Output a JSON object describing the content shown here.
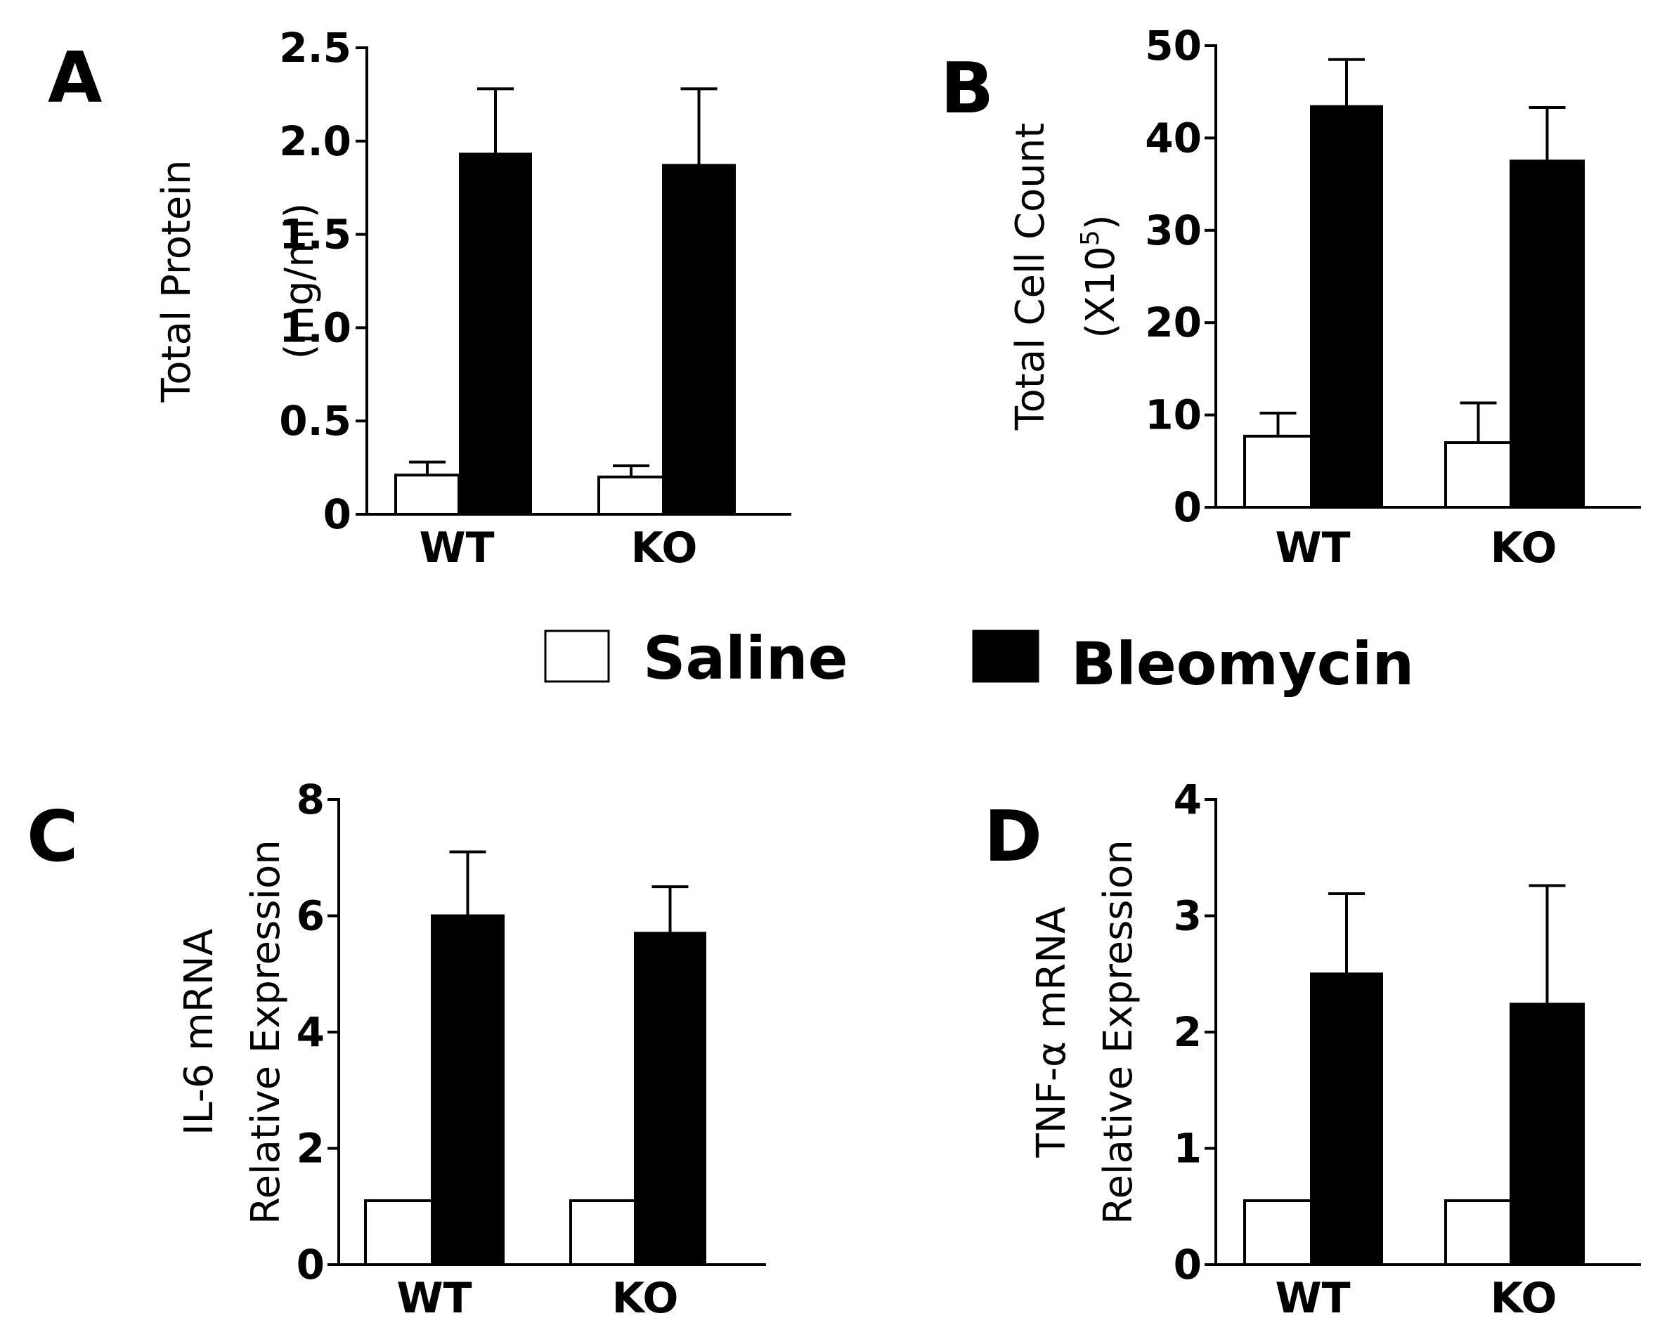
{
  "legend": {
    "items": [
      {
        "label": "Saline",
        "color": "#ffffff"
      },
      {
        "label": "Bleomycin",
        "color": "#000000"
      }
    ]
  },
  "chart_data": [
    {
      "panel": "A",
      "type": "bar",
      "categories": [
        "WT",
        "KO"
      ],
      "series": [
        {
          "name": "Saline",
          "color": "#ffffff",
          "values": [
            0.21,
            0.2
          ],
          "errors": [
            0.07,
            0.06
          ]
        },
        {
          "name": "Bleomycin",
          "color": "#000000",
          "values": [
            1.93,
            1.87
          ],
          "errors": [
            0.35,
            0.41
          ]
        }
      ],
      "ylabel_lines": [
        "Total Protein",
        "(mg/ml)"
      ],
      "ylim": [
        0,
        2.5
      ],
      "yticks": [
        "0",
        "0.5",
        "1.0",
        "1.5",
        "2.0",
        "2.5"
      ]
    },
    {
      "panel": "B",
      "type": "bar",
      "categories": [
        "WT",
        "KO"
      ],
      "series": [
        {
          "name": "Saline",
          "color": "#ffffff",
          "values": [
            7.7,
            7.0
          ],
          "errors": [
            2.5,
            4.3
          ]
        },
        {
          "name": "Bleomycin",
          "color": "#000000",
          "values": [
            43.4,
            37.5
          ],
          "errors": [
            5.1,
            5.8
          ]
        }
      ],
      "ylabel_lines": [
        "Total Cell Count",
        "(X10",
        "5",
        ")"
      ],
      "ylim": [
        0,
        50
      ],
      "yticks": [
        "0",
        "10",
        "20",
        "30",
        "40",
        "50"
      ]
    },
    {
      "panel": "C",
      "type": "bar",
      "categories": [
        "WT",
        "KO"
      ],
      "series": [
        {
          "name": "Saline",
          "color": "#ffffff",
          "values": [
            1.1,
            1.1
          ],
          "errors": [
            0,
            0
          ]
        },
        {
          "name": "Bleomycin",
          "color": "#000000",
          "values": [
            6.0,
            5.7
          ],
          "errors": [
            1.1,
            0.8
          ]
        }
      ],
      "ylabel_lines": [
        "IL-6 mRNA",
        "Relative Expression"
      ],
      "ylim": [
        0,
        8
      ],
      "yticks": [
        "0",
        "2",
        "4",
        "6",
        "8"
      ]
    },
    {
      "panel": "D",
      "type": "bar",
      "categories": [
        "WT",
        "KO"
      ],
      "series": [
        {
          "name": "Saline",
          "color": "#ffffff",
          "values": [
            0.55,
            0.55
          ],
          "errors": [
            0,
            0
          ]
        },
        {
          "name": "Bleomycin",
          "color": "#000000",
          "values": [
            2.5,
            2.24
          ],
          "errors": [
            0.69,
            1.02
          ]
        }
      ],
      "ylabel_lines": [
        "TNF-α mRNA",
        "Relative Expression"
      ],
      "ylim": [
        0,
        4
      ],
      "yticks": [
        "0",
        "1",
        "2",
        "3",
        "4"
      ]
    }
  ]
}
